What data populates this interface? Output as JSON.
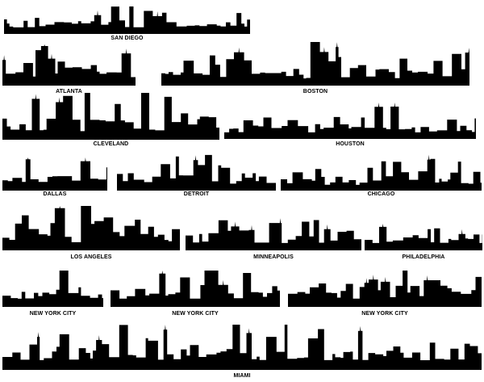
{
  "colors": {
    "silhouette": "#000000",
    "background": "#ffffff"
  },
  "skylines": [
    {
      "label": "SAN DIEGO"
    },
    {
      "label": "ATLANTA"
    },
    {
      "label": "BOSTON"
    },
    {
      "label": "CLEVELAND"
    },
    {
      "label": "HOUSTON"
    },
    {
      "label": "DALLAS"
    },
    {
      "label": "DETROIT"
    },
    {
      "label": "CHICAGO"
    },
    {
      "label": "LOS ANGELES"
    },
    {
      "label": "MINNEAPOLIS"
    },
    {
      "label": "PHILADELPHIA"
    },
    {
      "label": "NEW YORK CITY"
    },
    {
      "label": "NEW YORK CITY"
    },
    {
      "label": "NEW YORK CITY"
    },
    {
      "label": "MIAMI"
    }
  ]
}
